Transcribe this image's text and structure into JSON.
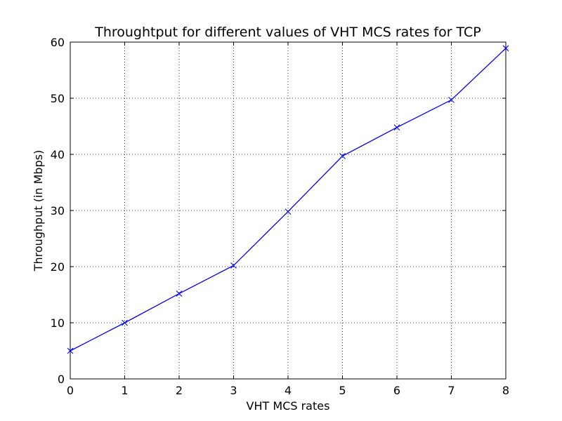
{
  "chart_data": {
    "type": "line",
    "title": "Throughtput for different values of VHT MCS rates for TCP",
    "xlabel": "VHT MCS rates",
    "ylabel": "Throughput (in Mbps)",
    "xlim": [
      0,
      8
    ],
    "ylim": [
      0,
      60
    ],
    "xticks": [
      0,
      1,
      2,
      3,
      4,
      5,
      6,
      7,
      8
    ],
    "yticks": [
      0,
      10,
      20,
      30,
      40,
      50,
      60
    ],
    "grid": true,
    "legend": "none",
    "series": [
      {
        "color": "#0000ff",
        "marker": "x",
        "x": [
          0,
          1,
          2,
          3,
          4,
          5,
          6,
          7,
          8
        ],
        "y": [
          5.0,
          10.0,
          15.2,
          20.2,
          29.8,
          39.7,
          44.8,
          49.7,
          58.9
        ]
      }
    ]
  }
}
